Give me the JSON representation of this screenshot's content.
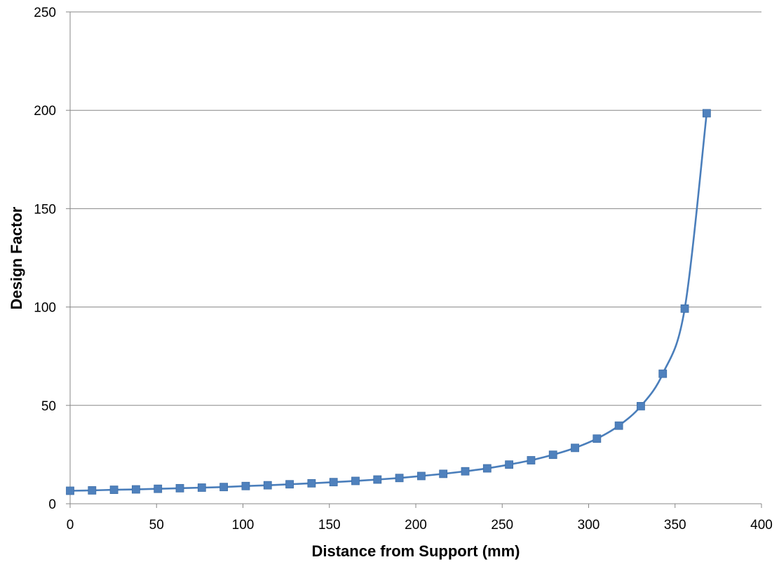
{
  "chart_data": {
    "type": "line",
    "title": "",
    "xlabel": "Distance from Support (mm)",
    "ylabel": "Design Factor",
    "xlim": [
      0,
      400
    ],
    "ylim": [
      0,
      250
    ],
    "xticks": [
      0,
      50,
      100,
      150,
      200,
      250,
      300,
      350,
      400
    ],
    "yticks": [
      0,
      50,
      100,
      150,
      200,
      250
    ],
    "xtick_labels": [
      "0",
      "50",
      "100",
      "150",
      "200",
      "250",
      "300",
      "350",
      "400"
    ],
    "ytick_labels": [
      "0",
      "50",
      "100",
      "150",
      "200",
      "250"
    ],
    "grid": "horizontal",
    "legend": "none",
    "series": [
      {
        "marker": "square",
        "smooth": true,
        "color": "#4A7EBB",
        "marker_color": "#4F81BD",
        "x": [
          0,
          12.7,
          25.4,
          38.1,
          50.8,
          63.5,
          76.2,
          88.9,
          101.6,
          114.3,
          127,
          139.7,
          152.4,
          165.1,
          177.8,
          190.5,
          203.2,
          215.9,
          228.6,
          241.3,
          254,
          266.7,
          279.4,
          292.1,
          304.8,
          317.5,
          330.2,
          342.9,
          355.6,
          368.3
        ],
        "y": [
          6.6,
          6.8,
          7.1,
          7.3,
          7.6,
          7.9,
          8.2,
          8.5,
          9.0,
          9.4,
          9.9,
          10.4,
          11.0,
          11.6,
          12.3,
          13.1,
          14.1,
          15.2,
          16.5,
          18.0,
          19.9,
          22.1,
          24.9,
          28.4,
          33.1,
          39.7,
          49.6,
          66.1,
          99.2,
          198.5
        ]
      }
    ]
  }
}
